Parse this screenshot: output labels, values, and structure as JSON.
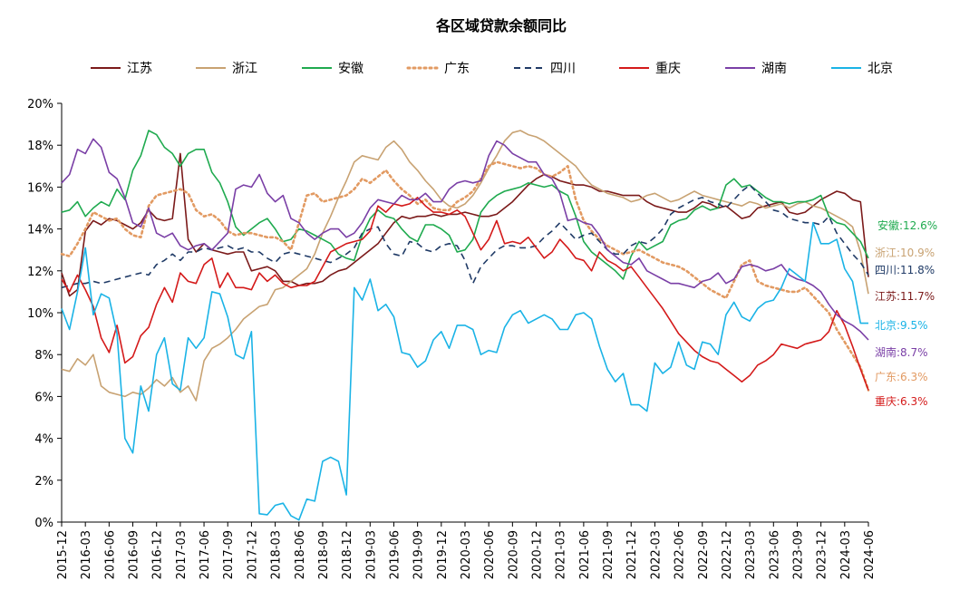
{
  "chart_data": {
    "type": "line",
    "title": "各区域贷款余额同比",
    "xlabel": "",
    "ylabel": "",
    "ylim": [
      0,
      20
    ],
    "yticks": [
      "0%",
      "2%",
      "4%",
      "6%",
      "8%",
      "10%",
      "12%",
      "14%",
      "16%",
      "18%",
      "20%"
    ],
    "x_tick_labels": [
      "2015-12",
      "2016-03",
      "2016-06",
      "2016-09",
      "2016-12",
      "2017-03",
      "2017-06",
      "2017-09",
      "2017-12",
      "2018-03",
      "2018-06",
      "2018-09",
      "2018-12",
      "2019-03",
      "2019-06",
      "2019-09",
      "2019-12",
      "2020-03",
      "2020-06",
      "2020-09",
      "2020-12",
      "2021-03",
      "2021-06",
      "2021-09",
      "2021-12",
      "2022-03",
      "2022-06",
      "2022-09",
      "2022-12",
      "2023-03",
      "2023-06",
      "2023-09",
      "2023-12",
      "2024-03",
      "2024-06"
    ],
    "x_note": "monthly values from 2015-12 to 2024-06 (103 months)",
    "legend_position": "top",
    "grid": false,
    "series": [
      {
        "name": "江苏",
        "color": "#7B1A1A",
        "dash": "solid",
        "end_label": "江苏:11.7%",
        "values": [
          11.9,
          10.8,
          11.1,
          13.9,
          14.4,
          14.2,
          14.5,
          14.4,
          14.2,
          14.0,
          14.3,
          14.9,
          14.5,
          14.4,
          14.5,
          17.6,
          13.5,
          12.9,
          13.3,
          13.0,
          12.9,
          12.8,
          12.9,
          12.9,
          12.0,
          12.1,
          12.2,
          12.0,
          11.5,
          11.5,
          11.3,
          11.4,
          11.4,
          11.5,
          11.8,
          12.0,
          12.1,
          12.4,
          12.7,
          13.0,
          13.3,
          13.8,
          14.3,
          14.6,
          14.5,
          14.6,
          14.6,
          14.7,
          14.6,
          14.7,
          14.7,
          14.8,
          14.7,
          14.6,
          14.6,
          14.7,
          15.0,
          15.3,
          15.7,
          16.1,
          16.4,
          16.6,
          16.5,
          16.3,
          16.2,
          16.1,
          16.1,
          16.0,
          15.8,
          15.8,
          15.7,
          15.6,
          15.6,
          15.6,
          15.3,
          15.1,
          15.0,
          14.9,
          14.8,
          14.8,
          15.0,
          15.3,
          15.2,
          15.0,
          15.1,
          14.8,
          14.5,
          14.6,
          15.0,
          15.1,
          15.2,
          15.3,
          14.8,
          14.7,
          14.8,
          15.1,
          15.4,
          15.6,
          15.8,
          15.7,
          15.4,
          15.3,
          11.7
        ]
      },
      {
        "name": "浙江",
        "color": "#C8A272",
        "dash": "solid",
        "end_label": "浙江:10.9%",
        "values": [
          7.3,
          7.2,
          7.8,
          7.5,
          8.0,
          6.5,
          6.2,
          6.1,
          6.0,
          6.2,
          6.1,
          6.4,
          6.8,
          6.5,
          6.9,
          6.2,
          6.5,
          5.8,
          7.7,
          8.3,
          8.5,
          8.8,
          9.2,
          9.7,
          10.0,
          10.3,
          10.4,
          11.1,
          11.2,
          11.5,
          11.8,
          12.1,
          12.8,
          13.8,
          14.6,
          15.5,
          16.3,
          17.2,
          17.5,
          17.4,
          17.3,
          17.9,
          18.2,
          17.8,
          17.2,
          16.8,
          16.3,
          15.9,
          15.4,
          15.1,
          15.0,
          15.2,
          15.6,
          16.2,
          16.9,
          17.5,
          18.2,
          18.6,
          18.7,
          18.5,
          18.4,
          18.2,
          17.9,
          17.6,
          17.3,
          17.0,
          16.5,
          16.1,
          15.9,
          15.7,
          15.6,
          15.5,
          15.3,
          15.4,
          15.6,
          15.7,
          15.5,
          15.3,
          15.4,
          15.6,
          15.8,
          15.6,
          15.5,
          15.4,
          15.3,
          15.2,
          15.1,
          15.3,
          15.2,
          15.0,
          15.1,
          15.2,
          15.0,
          15.2,
          15.3,
          15.1,
          15.0,
          14.8,
          14.6,
          14.4,
          14.1,
          12.9,
          10.9
        ]
      },
      {
        "name": "安徽",
        "color": "#1FAA4F",
        "dash": "solid",
        "end_label": "安徽:12.6%",
        "values": [
          14.8,
          14.9,
          15.3,
          14.6,
          15.0,
          15.3,
          15.1,
          15.9,
          15.4,
          16.8,
          17.5,
          18.7,
          18.5,
          17.9,
          17.6,
          17.0,
          17.6,
          17.8,
          17.8,
          16.7,
          16.2,
          15.3,
          14.1,
          13.7,
          14.0,
          14.3,
          14.5,
          14.0,
          13.4,
          13.5,
          14.0,
          13.9,
          13.7,
          13.5,
          13.3,
          12.8,
          12.6,
          12.5,
          13.7,
          14.5,
          14.9,
          14.6,
          14.5,
          14.0,
          13.6,
          13.4,
          14.2,
          14.2,
          14.0,
          13.7,
          12.9,
          13.0,
          13.5,
          14.8,
          15.3,
          15.6,
          15.8,
          15.9,
          16.0,
          16.2,
          16.1,
          16.0,
          16.1,
          15.8,
          15.6,
          14.6,
          13.4,
          12.9,
          12.6,
          12.3,
          12.0,
          11.6,
          12.7,
          13.4,
          13.0,
          13.2,
          13.4,
          14.2,
          14.4,
          14.5,
          14.9,
          15.1,
          14.9,
          15.0,
          16.1,
          16.4,
          16.0,
          16.1,
          15.8,
          15.5,
          15.3,
          15.3,
          15.2,
          15.3,
          15.3,
          15.4,
          15.6,
          14.6,
          14.3,
          14.2,
          13.8,
          13.4,
          12.6
        ]
      },
      {
        "name": "广东",
        "color": "#E29A62",
        "dash": "dotted",
        "end_label": "广东:6.3%",
        "values": [
          12.8,
          12.7,
          13.3,
          14.0,
          14.8,
          14.6,
          14.4,
          14.5,
          14.0,
          13.7,
          13.6,
          15.1,
          15.6,
          15.7,
          15.8,
          15.9,
          15.7,
          14.9,
          14.6,
          14.7,
          14.4,
          13.9,
          13.7,
          13.8,
          13.8,
          13.7,
          13.6,
          13.6,
          13.4,
          13.0,
          14.3,
          15.6,
          15.7,
          15.3,
          15.4,
          15.5,
          15.6,
          15.9,
          16.4,
          16.2,
          16.5,
          16.8,
          16.3,
          15.9,
          15.6,
          15.2,
          15.4,
          15.0,
          14.9,
          14.9,
          15.3,
          15.5,
          15.8,
          16.4,
          17.0,
          17.2,
          17.1,
          17.0,
          16.9,
          17.0,
          16.9,
          16.6,
          16.5,
          16.7,
          17.0,
          15.4,
          14.4,
          13.9,
          13.5,
          13.2,
          13.0,
          12.8,
          12.9,
          13.0,
          12.8,
          12.6,
          12.4,
          12.3,
          12.2,
          12.0,
          11.7,
          11.4,
          11.1,
          10.9,
          10.7,
          11.5,
          12.3,
          12.5,
          11.5,
          11.3,
          11.2,
          11.1,
          11.0,
          11.0,
          11.2,
          10.8,
          10.4,
          10.0,
          9.2,
          8.6,
          8.0,
          7.4,
          6.3
        ]
      },
      {
        "name": "四川",
        "color": "#1F3A66",
        "dash": "dashed",
        "end_label": "四川:11.8%",
        "values": [
          11.2,
          11.3,
          11.4,
          11.4,
          11.5,
          11.4,
          11.5,
          11.6,
          11.7,
          11.8,
          11.9,
          11.8,
          12.3,
          12.5,
          12.8,
          12.5,
          12.9,
          12.9,
          13.1,
          13.0,
          13.1,
          13.2,
          13.0,
          13.1,
          12.9,
          12.9,
          12.6,
          12.4,
          12.8,
          12.9,
          12.8,
          12.7,
          12.6,
          12.5,
          12.4,
          12.6,
          12.8,
          13.1,
          13.8,
          14.0,
          14.1,
          13.3,
          12.8,
          12.7,
          13.4,
          13.3,
          13.0,
          12.9,
          13.2,
          13.3,
          13.2,
          12.5,
          11.4,
          12.2,
          12.6,
          13.0,
          13.2,
          13.2,
          13.1,
          13.1,
          13.2,
          13.6,
          13.9,
          14.3,
          13.9,
          13.5,
          13.7,
          13.8,
          13.4,
          13.0,
          12.8,
          12.8,
          13.2,
          13.4,
          13.3,
          13.6,
          14.0,
          14.7,
          15.0,
          15.2,
          15.4,
          15.5,
          15.3,
          15.2,
          15.0,
          15.4,
          15.8,
          16.1,
          15.7,
          15.3,
          14.9,
          14.8,
          14.5,
          14.4,
          14.3,
          14.3,
          14.2,
          14.6,
          13.8,
          13.3,
          12.8,
          12.4,
          11.8
        ]
      },
      {
        "name": "重庆",
        "color": "#D41A1A",
        "dash": "solid",
        "end_label": "重庆:6.3%",
        "values": [
          11.6,
          11.0,
          11.8,
          11.1,
          10.3,
          8.8,
          8.1,
          9.4,
          7.6,
          7.9,
          8.9,
          9.3,
          10.4,
          11.2,
          10.5,
          11.9,
          11.5,
          11.4,
          12.3,
          12.6,
          11.2,
          11.9,
          11.2,
          11.2,
          11.1,
          11.9,
          11.5,
          11.8,
          11.4,
          11.2,
          11.3,
          11.3,
          11.5,
          12.2,
          12.9,
          13.1,
          13.3,
          13.4,
          13.5,
          13.9,
          15.1,
          14.8,
          15.2,
          15.1,
          15.2,
          15.5,
          15.1,
          14.8,
          14.8,
          14.7,
          14.9,
          14.6,
          13.8,
          13.0,
          13.5,
          14.4,
          13.3,
          13.4,
          13.3,
          13.6,
          13.1,
          12.6,
          12.9,
          13.5,
          13.1,
          12.6,
          12.5,
          12.0,
          12.9,
          12.5,
          12.3,
          12.0,
          12.2,
          11.7,
          11.2,
          10.7,
          10.2,
          9.6,
          9.0,
          8.6,
          8.2,
          7.9,
          7.7,
          7.6,
          7.3,
          7.0,
          6.7,
          7.0,
          7.5,
          7.7,
          8.0,
          8.5,
          8.4,
          8.3,
          8.5,
          8.6,
          8.7,
          9.1,
          10.1,
          9.4,
          8.4,
          7.3,
          6.3
        ]
      },
      {
        "name": "湖南",
        "color": "#7A3FA6",
        "dash": "solid",
        "end_label": "湖南:8.7%",
        "values": [
          16.2,
          16.6,
          17.8,
          17.6,
          18.3,
          17.9,
          16.7,
          16.4,
          15.5,
          14.3,
          14.1,
          15.0,
          13.8,
          13.6,
          13.8,
          13.2,
          13.0,
          13.2,
          13.3,
          13.0,
          13.4,
          13.8,
          15.9,
          16.1,
          16.0,
          16.6,
          15.7,
          15.3,
          15.6,
          14.5,
          14.3,
          13.8,
          13.5,
          13.8,
          14.0,
          14.0,
          13.6,
          13.8,
          14.3,
          15.0,
          15.4,
          15.3,
          15.2,
          15.6,
          15.4,
          15.4,
          15.7,
          15.3,
          15.3,
          15.9,
          16.2,
          16.3,
          16.2,
          16.3,
          17.5,
          18.2,
          18.0,
          17.6,
          17.4,
          17.2,
          17.2,
          16.6,
          16.4,
          15.7,
          14.4,
          14.5,
          14.3,
          14.2,
          13.7,
          13.0,
          12.7,
          12.4,
          12.3,
          12.6,
          12.0,
          11.8,
          11.6,
          11.4,
          11.4,
          11.3,
          11.2,
          11.5,
          11.6,
          11.9,
          11.4,
          11.6,
          12.2,
          12.3,
          12.2,
          12.0,
          12.1,
          12.3,
          11.8,
          11.6,
          11.5,
          11.3,
          11.0,
          10.4,
          9.9,
          9.6,
          9.4,
          9.1,
          8.7
        ]
      },
      {
        "name": "北京",
        "color": "#1AB3E6",
        "dash": "solid",
        "end_label": "北京:9.5%",
        "values": [
          10.2,
          9.2,
          11.0,
          13.1,
          9.9,
          10.9,
          10.7,
          9.0,
          4.0,
          3.3,
          6.5,
          5.3,
          8.0,
          8.8,
          6.6,
          6.3,
          8.8,
          8.3,
          8.8,
          11.0,
          10.9,
          9.8,
          8.0,
          7.8,
          9.1,
          0.4,
          0.35,
          0.8,
          0.9,
          0.3,
          0.1,
          1.1,
          1.0,
          2.9,
          3.1,
          2.9,
          1.3,
          11.2,
          10.6,
          11.6,
          10.1,
          10.4,
          9.8,
          8.1,
          8.0,
          7.4,
          7.7,
          8.7,
          9.1,
          8.3,
          9.4,
          9.4,
          9.2,
          8.0,
          8.2,
          8.1,
          9.3,
          9.9,
          10.1,
          9.5,
          9.7,
          9.9,
          9.7,
          9.2,
          9.2,
          9.9,
          10.0,
          9.7,
          8.4,
          7.3,
          6.7,
          7.1,
          5.6,
          5.6,
          5.3,
          7.6,
          7.1,
          7.4,
          8.6,
          7.5,
          7.3,
          8.6,
          8.5,
          8.0,
          9.9,
          10.5,
          9.8,
          9.6,
          10.2,
          10.5,
          10.6,
          11.2,
          12.1,
          11.8,
          11.5,
          14.3,
          13.3,
          13.3,
          13.5,
          12.1,
          11.5,
          9.5,
          9.5
        ]
      }
    ]
  }
}
